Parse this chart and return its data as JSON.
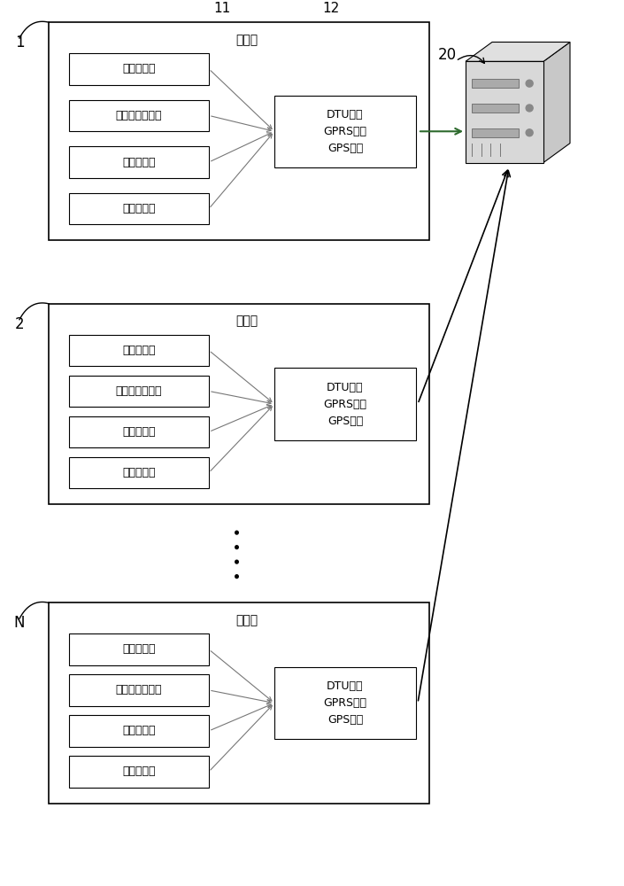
{
  "bg_color": "#ffffff",
  "box_color": "#000000",
  "green_arrow_color": "#2d6a2d",
  "label_1": "1",
  "label_2": "2",
  "label_N": "N",
  "label_20": "20",
  "label_11": "11",
  "label_12": "12",
  "bin_label": "垃圾桶",
  "sensors": [
    "红外传感器",
    "激光对射传感器",
    "烟雾报警器",
    "重量传感器"
  ],
  "dtu_text": "DTU数传\nGPRS通信\nGPS定位",
  "font_size_sensor": 9,
  "font_size_number": 12
}
